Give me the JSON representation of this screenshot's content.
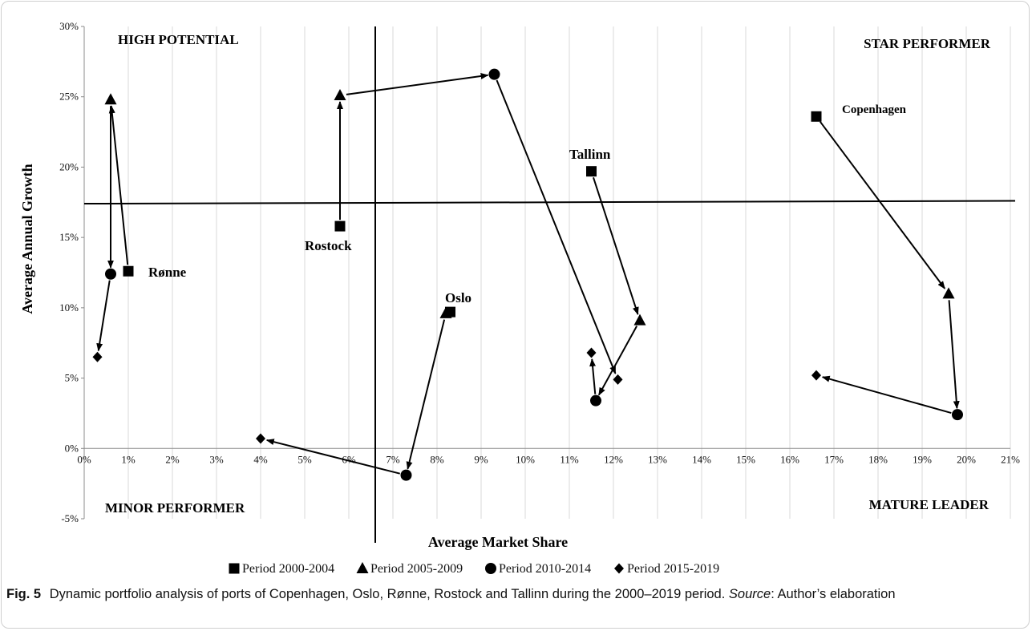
{
  "chart_data": {
    "type": "scatter",
    "title": "",
    "xlabel": "Average Market Share",
    "ylabel": "Average Annual Growth",
    "xlim": [
      0,
      21
    ],
    "ylim": [
      -5,
      30
    ],
    "x_ticks": [
      0,
      1,
      2,
      3,
      4,
      5,
      6,
      7,
      8,
      9,
      10,
      11,
      12,
      13,
      14,
      15,
      16,
      17,
      18,
      19,
      20,
      21
    ],
    "y_ticks": [
      -5,
      0,
      5,
      10,
      15,
      20,
      25,
      30
    ],
    "x_tick_labels": [
      "0%",
      "1%",
      "2%",
      "3%",
      "4%",
      "5%",
      "6%",
      "7%",
      "8%",
      "9%",
      "10%",
      "11%",
      "12%",
      "13%",
      "14%",
      "15%",
      "16%",
      "17%",
      "18%",
      "19%",
      "20%",
      "21%"
    ],
    "y_tick_labels": [
      "-5%",
      "0%",
      "5%",
      "10%",
      "15%",
      "20%",
      "25%",
      "30%"
    ],
    "grid": "vertical",
    "legend_position": "bottom",
    "series": [
      {
        "name": "Period 2000-2004",
        "marker": "square"
      },
      {
        "name": "Period 2005-2009",
        "marker": "triangle"
      },
      {
        "name": "Period 2010-2014",
        "marker": "circle"
      },
      {
        "name": "Period 2015-2019",
        "marker": "diamond"
      }
    ],
    "ports": [
      {
        "label": "Rønne",
        "points": [
          {
            "period": 0,
            "x": 1.0,
            "y": 12.6
          },
          {
            "period": 1,
            "x": 0.6,
            "y": 24.8
          },
          {
            "period": 2,
            "x": 0.6,
            "y": 12.4
          },
          {
            "period": 3,
            "x": 0.3,
            "y": 6.5
          }
        ]
      },
      {
        "label": "Rostock",
        "points": [
          {
            "period": 0,
            "x": 5.8,
            "y": 15.8
          },
          {
            "period": 1,
            "x": 5.8,
            "y": 25.1
          },
          {
            "period": 2,
            "x": 9.3,
            "y": 26.6
          },
          {
            "period": 3,
            "x": 12.1,
            "y": 4.9
          }
        ]
      },
      {
        "label": "Oslo",
        "points": [
          {
            "period": 0,
            "x": 8.3,
            "y": 9.7
          },
          {
            "period": 1,
            "x": 8.2,
            "y": 9.6
          },
          {
            "period": 2,
            "x": 7.3,
            "y": -1.9
          },
          {
            "period": 3,
            "x": 4.0,
            "y": 0.7
          }
        ]
      },
      {
        "label": "Tallinn",
        "points": [
          {
            "period": 0,
            "x": 11.5,
            "y": 19.7
          },
          {
            "period": 1,
            "x": 12.6,
            "y": 9.1
          },
          {
            "period": 2,
            "x": 11.6,
            "y": 3.4
          },
          {
            "period": 3,
            "x": 11.5,
            "y": 6.8
          }
        ]
      },
      {
        "label": "Copenhagen",
        "points": [
          {
            "period": 0,
            "x": 16.6,
            "y": 23.6
          },
          {
            "period": 1,
            "x": 19.6,
            "y": 11.0
          },
          {
            "period": 2,
            "x": 19.8,
            "y": 2.4
          },
          {
            "period": 3,
            "x": 16.6,
            "y": 5.2
          }
        ]
      }
    ],
    "reference_lines": {
      "vertical_x": 6.6,
      "horizontal_y_left": 17.4,
      "horizontal_y_right": 17.6
    },
    "quadrants": {
      "top_left": "HIGH POTENTIAL",
      "top_right": "STAR PERFORMER",
      "bottom_left": "MINOR PERFORMER",
      "bottom_right": "MATURE LEADER"
    }
  },
  "caption": {
    "fig_label": "Fig. 5",
    "text": "Dynamic portfolio analysis of ports of Copenhagen, Oslo, Rønne, Rostock and Tallinn during the 2000–2019 period.",
    "source_label": "Source",
    "source_text": ": Author’s elaboration"
  },
  "colors": {
    "ink": "#000000",
    "grid": "#d9d9d9",
    "text": "#111111"
  }
}
